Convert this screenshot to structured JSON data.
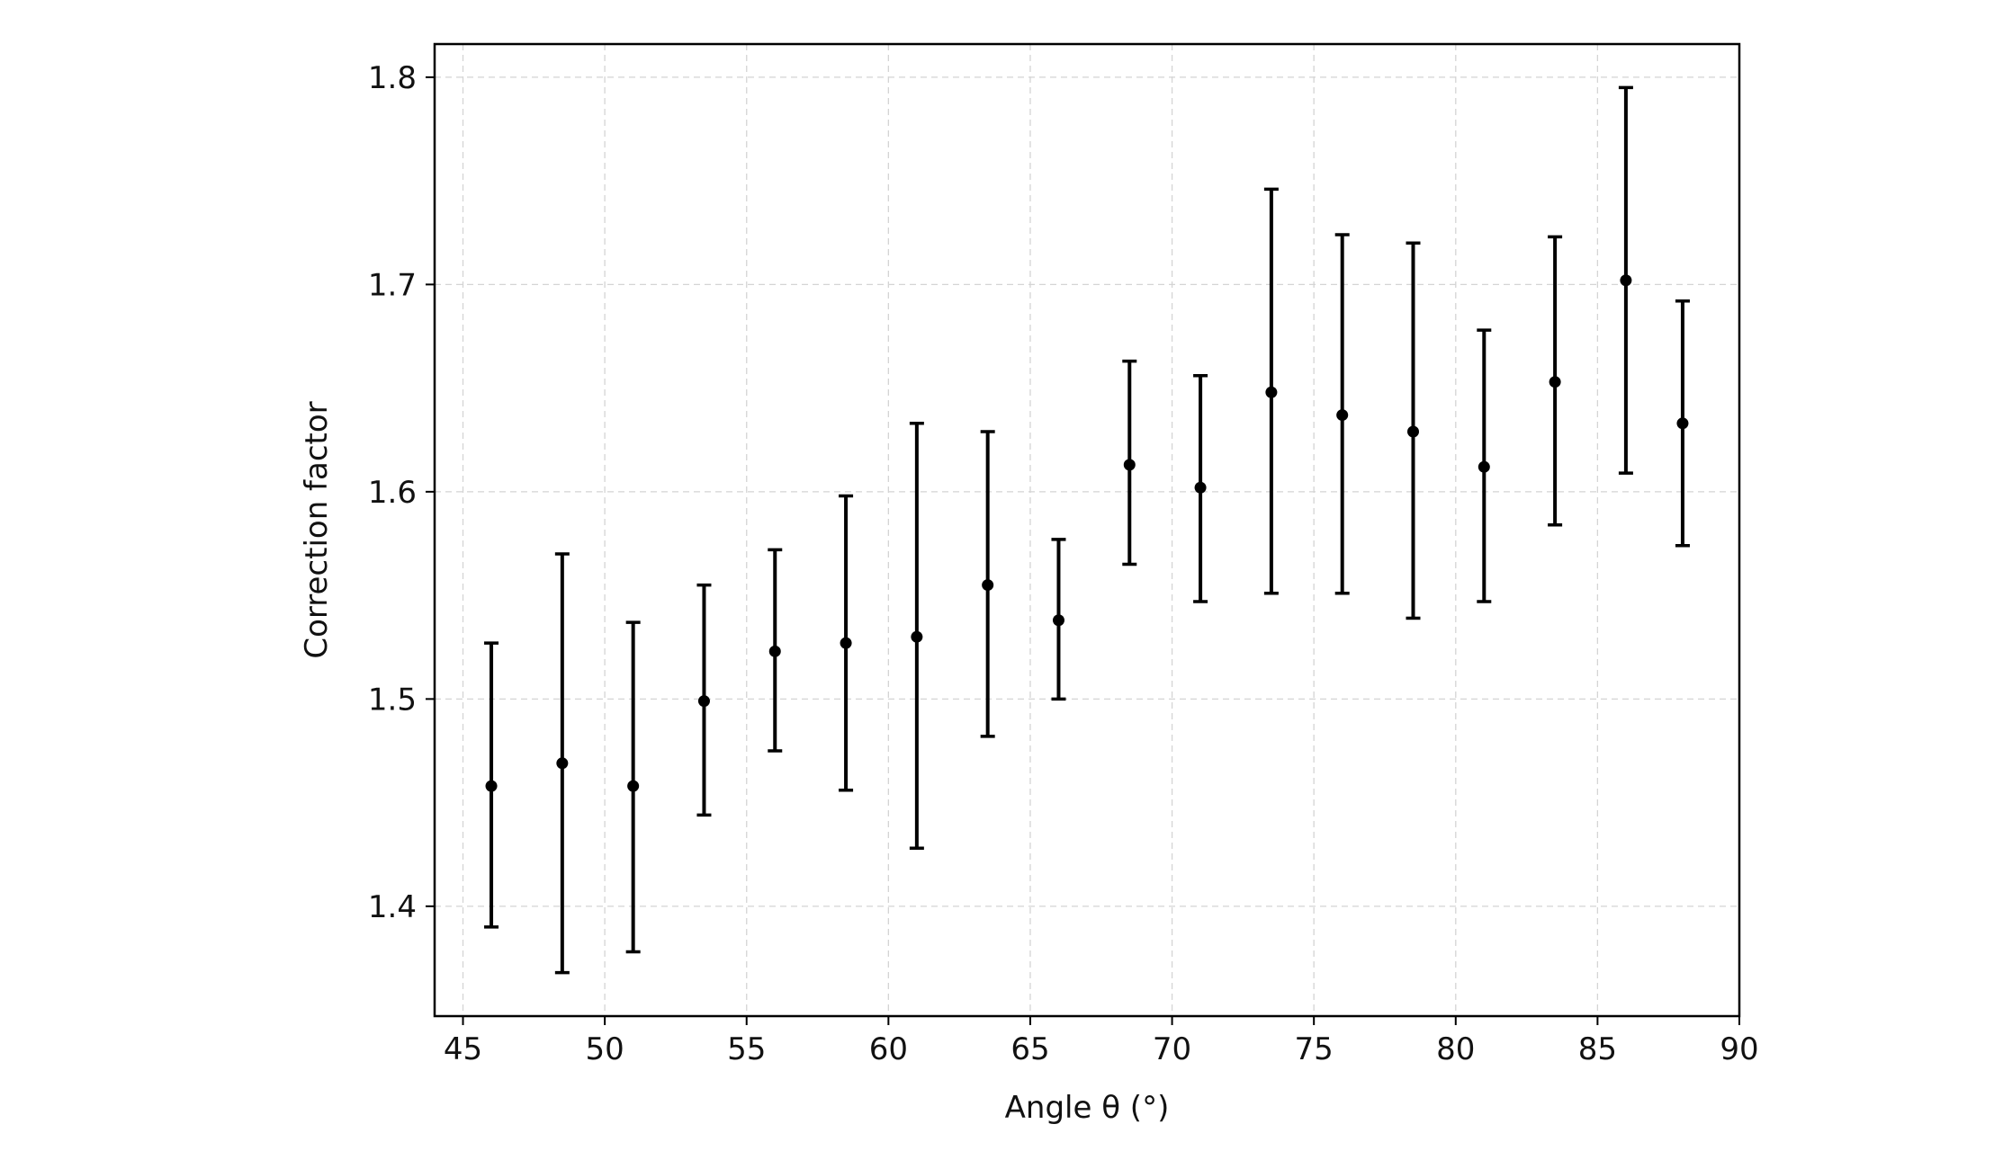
{
  "chart_data": {
    "type": "scatter",
    "title": "",
    "xlabel": "Angle θ (°)",
    "ylabel": "Correction factor",
    "xlim": [
      44,
      90
    ],
    "ylim": [
      1.347,
      1.816
    ],
    "xticks": [
      45,
      50,
      55,
      60,
      65,
      70,
      75,
      80,
      85,
      90
    ],
    "yticks": [
      1.4,
      1.5,
      1.6,
      1.7,
      1.8
    ],
    "xtick_labels": [
      "45",
      "50",
      "55",
      "60",
      "65",
      "70",
      "75",
      "80",
      "85",
      "90"
    ],
    "ytick_labels": [
      "1.4",
      "1.5",
      "1.6",
      "1.7",
      "1.8"
    ],
    "grid": true,
    "marker_color": "#000000",
    "series": [
      {
        "points": [
          {
            "x": 46.0,
            "y": 1.458,
            "ylow": 1.39,
            "yhigh": 1.527
          },
          {
            "x": 48.5,
            "y": 1.469,
            "ylow": 1.368,
            "yhigh": 1.57
          },
          {
            "x": 51.0,
            "y": 1.458,
            "ylow": 1.378,
            "yhigh": 1.537
          },
          {
            "x": 53.5,
            "y": 1.499,
            "ylow": 1.444,
            "yhigh": 1.555
          },
          {
            "x": 56.0,
            "y": 1.523,
            "ylow": 1.475,
            "yhigh": 1.572
          },
          {
            "x": 58.5,
            "y": 1.527,
            "ylow": 1.456,
            "yhigh": 1.598
          },
          {
            "x": 61.0,
            "y": 1.53,
            "ylow": 1.428,
            "yhigh": 1.633
          },
          {
            "x": 63.5,
            "y": 1.555,
            "ylow": 1.482,
            "yhigh": 1.629
          },
          {
            "x": 66.0,
            "y": 1.538,
            "ylow": 1.5,
            "yhigh": 1.577
          },
          {
            "x": 68.5,
            "y": 1.613,
            "ylow": 1.565,
            "yhigh": 1.663
          },
          {
            "x": 71.0,
            "y": 1.602,
            "ylow": 1.547,
            "yhigh": 1.656
          },
          {
            "x": 73.5,
            "y": 1.648,
            "ylow": 1.551,
            "yhigh": 1.746
          },
          {
            "x": 76.0,
            "y": 1.637,
            "ylow": 1.551,
            "yhigh": 1.724
          },
          {
            "x": 78.5,
            "y": 1.629,
            "ylow": 1.539,
            "yhigh": 1.72
          },
          {
            "x": 81.0,
            "y": 1.612,
            "ylow": 1.547,
            "yhigh": 1.678
          },
          {
            "x": 83.5,
            "y": 1.653,
            "ylow": 1.584,
            "yhigh": 1.723
          },
          {
            "x": 86.0,
            "y": 1.702,
            "ylow": 1.609,
            "yhigh": 1.795
          },
          {
            "x": 88.0,
            "y": 1.633,
            "ylow": 1.574,
            "yhigh": 1.692
          }
        ]
      }
    ]
  }
}
